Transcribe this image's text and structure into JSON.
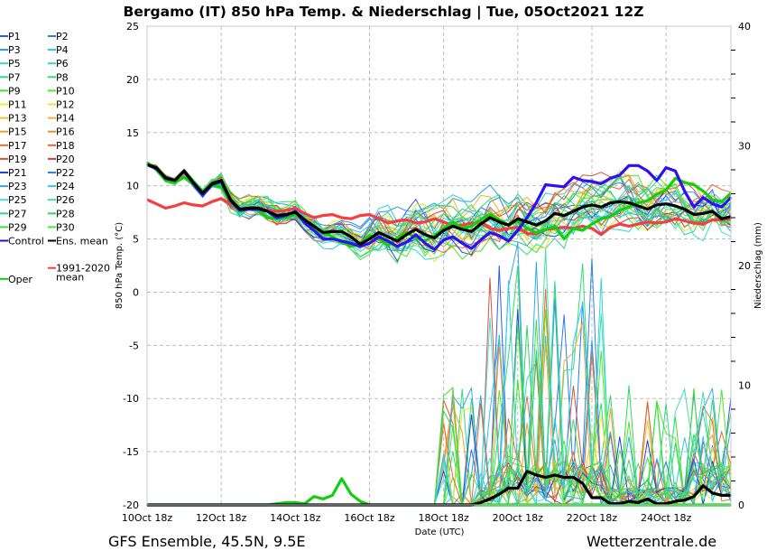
{
  "title": "Bergamo  (IT)  850 hPa Temp. & Niederschlag | Tue, 05Oct2021 12Z",
  "footer_left": "GFS Ensemble, 45.5N, 9.5E",
  "footer_right": "Wetterzentrale.de",
  "chart_data": {
    "type": "line",
    "title": "Bergamo  (IT)  850 hPa Temp. & Niederschlag | Tue, 05Oct2021 12Z",
    "xlabel": "Date (UTC)",
    "ylabel": "850 hPa Temp. (°C)",
    "y2label": "Niederschlag (mm)",
    "ylim": [
      -20,
      25
    ],
    "y2lim": [
      0,
      40
    ],
    "yticks": [
      "25",
      "20",
      "15",
      "10",
      "5",
      "0",
      "-5",
      "-10",
      "-15",
      "-20"
    ],
    "ytick_values": [
      25,
      20,
      15,
      10,
      5,
      0,
      -5,
      -10,
      -15,
      -20
    ],
    "y2ticks": [
      "40",
      "30",
      "20",
      "10",
      "0"
    ],
    "y2tick_values": [
      40,
      30,
      20,
      10,
      0
    ],
    "xticks": [
      "10Oct 18z",
      "12Oct 18z",
      "14Oct 18z",
      "16Oct 18z",
      "18Oct 18z",
      "20Oct 18z",
      "22Oct 18z",
      "24Oct 18z"
    ],
    "x_step_hours": 6,
    "grid": true,
    "legend_position": "left",
    "legend": [
      {
        "label": "P1",
        "color": "#2b5ce6"
      },
      {
        "label": "P2",
        "color": "#2f7be8"
      },
      {
        "label": "P3",
        "color": "#2a9ae8"
      },
      {
        "label": "P4",
        "color": "#2bc4e8"
      },
      {
        "label": "P5",
        "color": "#30d8d8"
      },
      {
        "label": "P6",
        "color": "#30dcb0"
      },
      {
        "label": "P7",
        "color": "#30dc80"
      },
      {
        "label": "P8",
        "color": "#30e060"
      },
      {
        "label": "P9",
        "color": "#40e030"
      },
      {
        "label": "P10",
        "color": "#50e820"
      },
      {
        "label": "P11",
        "color": "#f0f020"
      },
      {
        "label": "P12",
        "color": "#f5e030"
      },
      {
        "label": "P13",
        "color": "#f5c030"
      },
      {
        "label": "P14",
        "color": "#f0b030"
      },
      {
        "label": "P15",
        "color": "#f0a030"
      },
      {
        "label": "P16",
        "color": "#e89030"
      },
      {
        "label": "P17",
        "color": "#e07030"
      },
      {
        "label": "P18",
        "color": "#d86a40"
      },
      {
        "label": "P19",
        "color": "#d85040"
      },
      {
        "label": "P20",
        "color": "#c84040"
      },
      {
        "label": "P21",
        "color": "#2040d8"
      },
      {
        "label": "P22",
        "color": "#3080e8"
      },
      {
        "label": "P23",
        "color": "#30a8e8"
      },
      {
        "label": "P24",
        "color": "#30c8f0"
      },
      {
        "label": "P25",
        "color": "#40e0e0"
      },
      {
        "label": "P26",
        "color": "#40e0b0"
      },
      {
        "label": "P27",
        "color": "#30d880"
      },
      {
        "label": "P28",
        "color": "#30d860"
      },
      {
        "label": "P29",
        "color": "#40e040"
      },
      {
        "label": "P30",
        "color": "#40e830"
      },
      {
        "label": "Control",
        "color": "#2010e0"
      },
      {
        "label": "Ens. mean",
        "color": "#000000"
      },
      {
        "label": "1991-2020\nmean",
        "color": "#f04040"
      },
      {
        "label": "Oper",
        "color": "#10c810"
      }
    ],
    "series": [
      {
        "name": "Control",
        "color": "#3010f0",
        "values": [
          12,
          11.6,
          10.8,
          10.5,
          11.4,
          10.2,
          9.2,
          10.1,
          10.4,
          8.6,
          7.7,
          7.8,
          7.8,
          7.6,
          7.0,
          7.2,
          7.6,
          6.5,
          5.8,
          5.0,
          5.0,
          4.8,
          4.6,
          4.3,
          4.6,
          5.2,
          4.8,
          4.3,
          4.7,
          5.4,
          4.6,
          4.0,
          4.9,
          5.2,
          4.6,
          4.1,
          4.9,
          5.6,
          5.3,
          4.8,
          5.8,
          7.0,
          8.4,
          10.1,
          10.0,
          9.9,
          10.8,
          10.5,
          10.4,
          10.2,
          10.7,
          11.0,
          11.9,
          11.9,
          11.4,
          10.5,
          11.7,
          11.4,
          9.5,
          8.0,
          8.9,
          8.3,
          8.0,
          8.9
        ]
      },
      {
        "name": "Ens. mean",
        "color": "#000000",
        "values": [
          12,
          11.7,
          10.7,
          10.5,
          11.4,
          10.3,
          9.3,
          10.2,
          10.5,
          8.7,
          7.8,
          7.9,
          7.9,
          7.6,
          7.2,
          7.3,
          7.5,
          6.8,
          6.2,
          5.6,
          5.7,
          5.7,
          5.2,
          4.5,
          5.0,
          5.6,
          5.2,
          4.8,
          5.4,
          5.9,
          5.4,
          5.1,
          5.8,
          6.2,
          5.9,
          5.7,
          6.4,
          7.0,
          6.6,
          6.3,
          6.9,
          6.6,
          6.3,
          6.7,
          7.4,
          7.2,
          7.6,
          8.0,
          8.2,
          8.0,
          8.4,
          8.5,
          8.4,
          8.1,
          7.8,
          8.2,
          8.3,
          8.1,
          7.8,
          7.3,
          7.4,
          7.6,
          6.9,
          7.1
        ]
      },
      {
        "name": "Oper",
        "color": "#10d010",
        "values": [
          12.2,
          11.5,
          10.5,
          10.3,
          10.8,
          10.1,
          9.5,
          10.0,
          9.9,
          8.5,
          7.6,
          7.8,
          7.7,
          7.0,
          6.9,
          7.0,
          7.3,
          6.6,
          6.0,
          5.6,
          5.2,
          4.7,
          4.3,
          4.6,
          5.3,
          5.0,
          4.4,
          5.1,
          5.6,
          5.1,
          4.8,
          5.3,
          6.0,
          6.6,
          6.0,
          6.2,
          6.8,
          7.3,
          6.8,
          6.3,
          6.7,
          6.0,
          5.6,
          5.9,
          6.2,
          5.0,
          6.0,
          5.8,
          6.4,
          6.9,
          7.1,
          7.7,
          8.0,
          8.4,
          8.6,
          9.2,
          9.6,
          10.7,
          10.3,
          10.1,
          9.5,
          8.7,
          8.5,
          9.3
        ]
      },
      {
        "name": "1991-2020 mean",
        "color": "#f04040",
        "values": [
          8.7,
          8.3,
          7.9,
          8.1,
          8.4,
          8.2,
          8.1,
          8.5,
          8.8,
          8.2,
          7.8,
          7.9,
          7.9,
          7.7,
          7.6,
          7.7,
          7.9,
          7.4,
          7.0,
          7.2,
          7.3,
          7.0,
          6.9,
          7.2,
          7.3,
          6.9,
          6.5,
          6.7,
          6.8,
          6.5,
          6.6,
          6.9,
          6.6,
          6.2,
          6.3,
          6.5,
          6.5,
          6.0,
          5.8,
          6.0,
          6.1,
          5.5,
          5.5,
          5.9,
          6.0,
          6.1,
          6.0,
          6.2,
          6.0,
          5.4,
          6.1,
          6.4,
          6.2,
          6.4,
          6.6,
          6.5,
          6.6,
          6.9,
          6.7,
          6.5,
          6.4,
          6.8,
          6.8,
          6.9
        ]
      },
      {
        "name": "Ens. mean precipitation (mm)",
        "color": "#000000",
        "axis": "y2",
        "values": [
          0,
          0,
          0,
          0,
          0,
          0,
          0,
          0,
          0,
          0,
          0,
          0,
          0,
          0,
          0,
          0,
          0,
          0,
          0,
          0,
          0,
          0,
          0,
          0,
          0,
          0,
          0,
          0,
          0,
          0,
          0,
          0,
          0,
          0,
          0,
          0,
          0.2,
          0.5,
          0.9,
          1.4,
          1.4,
          2.8,
          2.5,
          2.3,
          2.5,
          2.3,
          2.3,
          1.8,
          0.6,
          0.6,
          0.1,
          0.1,
          0.3,
          0.2,
          0.5,
          0.1,
          0.1,
          0.3,
          0.4,
          0.7,
          1.6,
          1.0,
          0.8,
          0.8
        ]
      },
      {
        "name": "Oper precipitation (mm)",
        "color": "#10d010",
        "axis": "y2",
        "values": [
          0,
          0,
          0,
          0,
          0,
          0,
          0,
          0,
          0,
          0,
          0,
          0,
          0,
          0,
          0.1,
          0.2,
          0.2,
          0.1,
          0.7,
          0.5,
          0.8,
          2.2,
          0.9,
          0.3,
          0,
          0,
          0,
          0,
          0,
          0,
          0,
          0,
          0,
          0,
          0,
          0,
          0,
          0,
          0,
          0,
          0,
          0,
          0,
          0,
          0,
          0,
          0,
          0,
          0,
          0,
          0,
          0,
          0,
          0,
          0,
          0,
          0,
          0,
          0,
          0,
          0,
          0,
          0,
          0
        ]
      }
    ]
  }
}
